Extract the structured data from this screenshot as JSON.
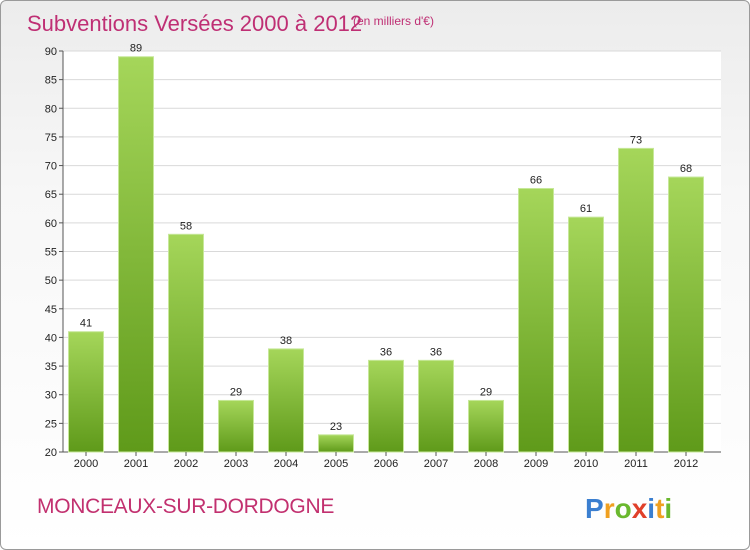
{
  "header": {
    "title": "Subventions Versées 2000 à 2012",
    "subtitle": "(en milliers d'€)"
  },
  "footer": {
    "place": "MONCEAUX-SUR-DORDOGNE",
    "brand": "Proxiti"
  },
  "colors": {
    "title": "#bf2f74",
    "bar_top": "#a5d65a",
    "bar_bottom": "#5f9a1a",
    "grid": "#d9d9d9"
  },
  "chart_data": {
    "type": "bar",
    "categories": [
      "2000",
      "2001",
      "2002",
      "2003",
      "2004",
      "2005",
      "2006",
      "2007",
      "2008",
      "2009",
      "2010",
      "2011",
      "2012"
    ],
    "values": [
      41,
      89,
      58,
      29,
      38,
      23,
      36,
      36,
      29,
      66,
      61,
      73,
      68
    ],
    "title": "Subventions Versées 2000 à 2012",
    "xlabel": "",
    "ylabel": "",
    "ylim": [
      20,
      90
    ],
    "yticks": [
      20,
      25,
      30,
      35,
      40,
      45,
      50,
      55,
      60,
      65,
      70,
      75,
      80,
      85,
      90
    ],
    "grid": true
  }
}
